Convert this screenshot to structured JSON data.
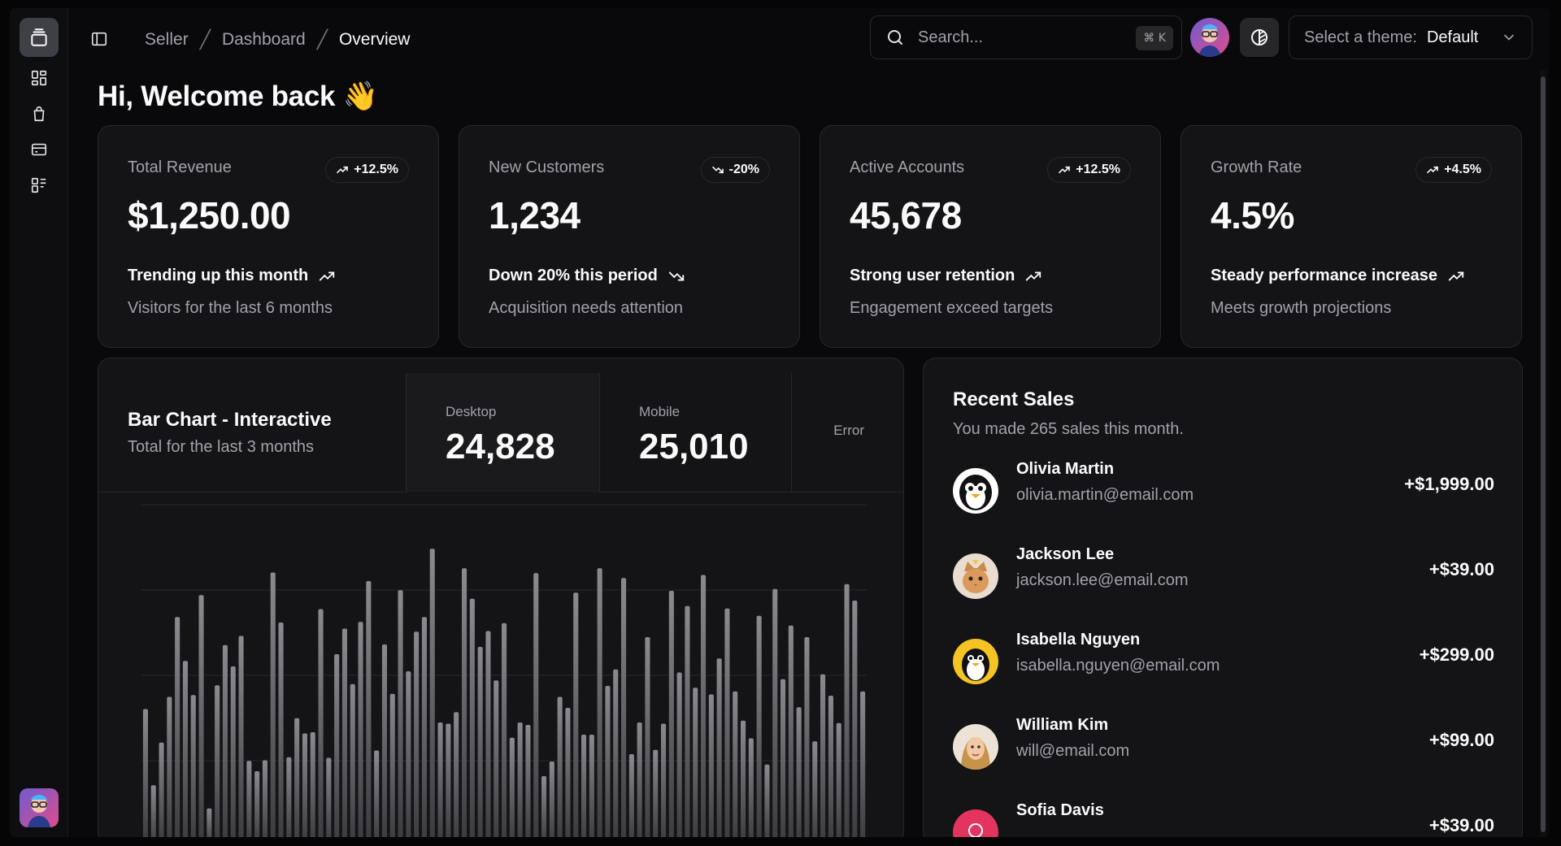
{
  "breadcrumb": [
    "Seller",
    "Dashboard",
    "Overview"
  ],
  "search": {
    "placeholder": "Search...",
    "shortcut": "⌘ K"
  },
  "theme": {
    "label": "Select a theme:",
    "value": "Default"
  },
  "greeting": "Hi, Welcome back 👋",
  "cards": [
    {
      "title": "Total Revenue",
      "badge": "+12.5%",
      "direction": "up",
      "value": "$1,250.00",
      "trend": "Trending up this month",
      "sub": "Visitors for the last 6 months"
    },
    {
      "title": "New Customers",
      "badge": "-20%",
      "direction": "down",
      "value": "1,234",
      "trend": "Down 20% this period",
      "sub": "Acquisition needs attention"
    },
    {
      "title": "Active Accounts",
      "badge": "+12.5%",
      "direction": "up",
      "value": "45,678",
      "trend": "Strong user retention",
      "sub": "Engagement exceed targets"
    },
    {
      "title": "Growth Rate",
      "badge": "+4.5%",
      "direction": "up",
      "value": "4.5%",
      "trend": "Steady performance increase",
      "sub": "Meets growth projections"
    }
  ],
  "chart": {
    "title": "Bar Chart - Interactive",
    "description": "Total for the last 3 months",
    "tabs": [
      {
        "label": "Desktop",
        "value": "24,828"
      },
      {
        "label": "Mobile",
        "value": "25,010"
      }
    ],
    "error_label": "Error"
  },
  "chart_data": {
    "type": "bar",
    "series": [
      {
        "values": [
          222,
          97,
          167,
          242,
          373,
          301,
          245,
          409,
          59,
          261,
          327,
          292,
          342,
          137,
          120,
          138,
          446,
          364,
          143,
          207,
          182,
          184,
          386,
          142,
          312,
          354,
          263,
          365,
          432,
          154,
          328,
          247,
          417,
          284,
          349,
          373,
          485,
          200,
          198,
          217,
          453,
          403,
          324,
          350,
          269,
          363,
          175,
          200,
          196,
          445,
          112,
          136,
          242,
          224,
          413,
          180,
          180,
          453,
          260,
          287,
          437,
          148,
          200,
          340,
          155,
          198,
          416,
          282,
          391,
          257,
          442,
          246,
          305,
          387,
          251,
          203,
          174,
          375,
          131,
          419,
          271,
          359,
          225,
          340,
          169,
          279,
          244,
          199,
          427,
          400,
          251
        ]
      }
    ],
    "ylim": [
      0,
      560
    ],
    "grid": true,
    "color": "#6b6b70"
  },
  "sales": {
    "title": "Recent Sales",
    "description": "You made 265 sales this month.",
    "items": [
      {
        "name": "Olivia Martin",
        "email": "olivia.martin@email.com",
        "amount": "+$1,999.00",
        "avatar": "penguin-avatar-icon"
      },
      {
        "name": "Jackson Lee",
        "email": "jackson.lee@email.com",
        "amount": "+$39.00",
        "avatar": "cat-avatar-icon"
      },
      {
        "name": "Isabella Nguyen",
        "email": "isabella.nguyen@email.com",
        "amount": "+$299.00",
        "avatar": "penguin-avatar-icon"
      },
      {
        "name": "William Kim",
        "email": "will@email.com",
        "amount": "+$99.00",
        "avatar": "person-avatar-icon"
      },
      {
        "name": "Sofia Davis",
        "email": "",
        "amount": "+$39.00",
        "avatar": "pink-avatar-icon"
      }
    ]
  },
  "colors": {
    "background": "#09090b",
    "card": "#141416",
    "border": "#27272a",
    "muted": "#a1a1aa"
  }
}
